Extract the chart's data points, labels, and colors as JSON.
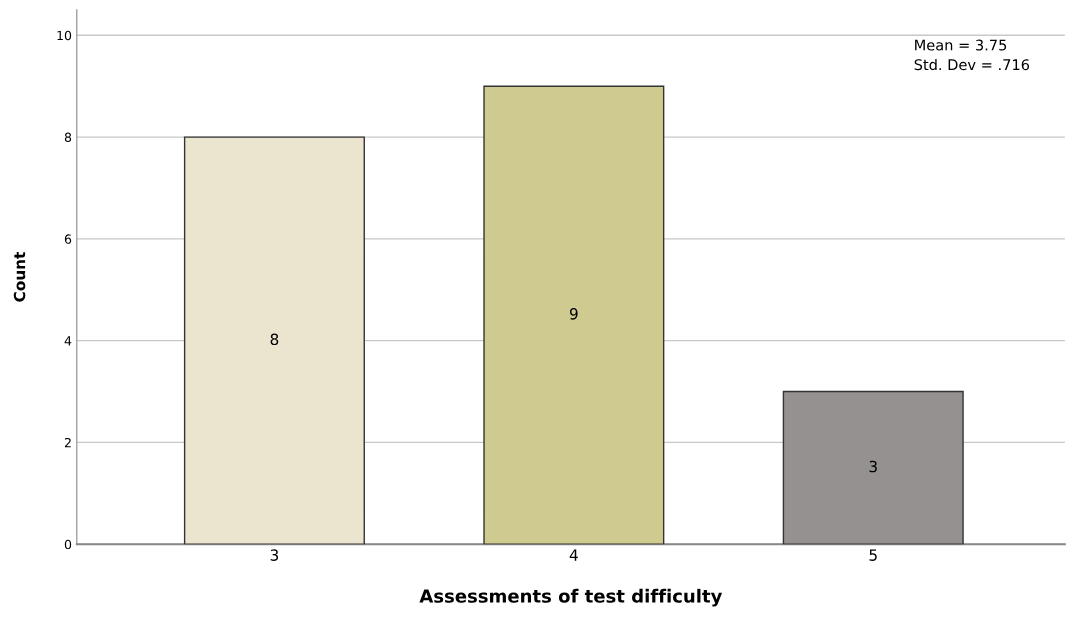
{
  "chart_data": {
    "type": "bar",
    "xlabel": "Assessments of test difficulty",
    "ylabel": "Count",
    "categories": [
      "3",
      "4",
      "5"
    ],
    "values": [
      8,
      9,
      3
    ],
    "colors": [
      "#ebe5cf",
      "#cfca8f",
      "#959190"
    ],
    "ylim": [
      0,
      10.5
    ],
    "yticks": [
      0,
      2,
      4,
      6,
      8,
      10
    ],
    "grid": "y",
    "data_labels": true,
    "annotations": [
      "Mean = 3.75\nStd. Dev = .716"
    ]
  }
}
